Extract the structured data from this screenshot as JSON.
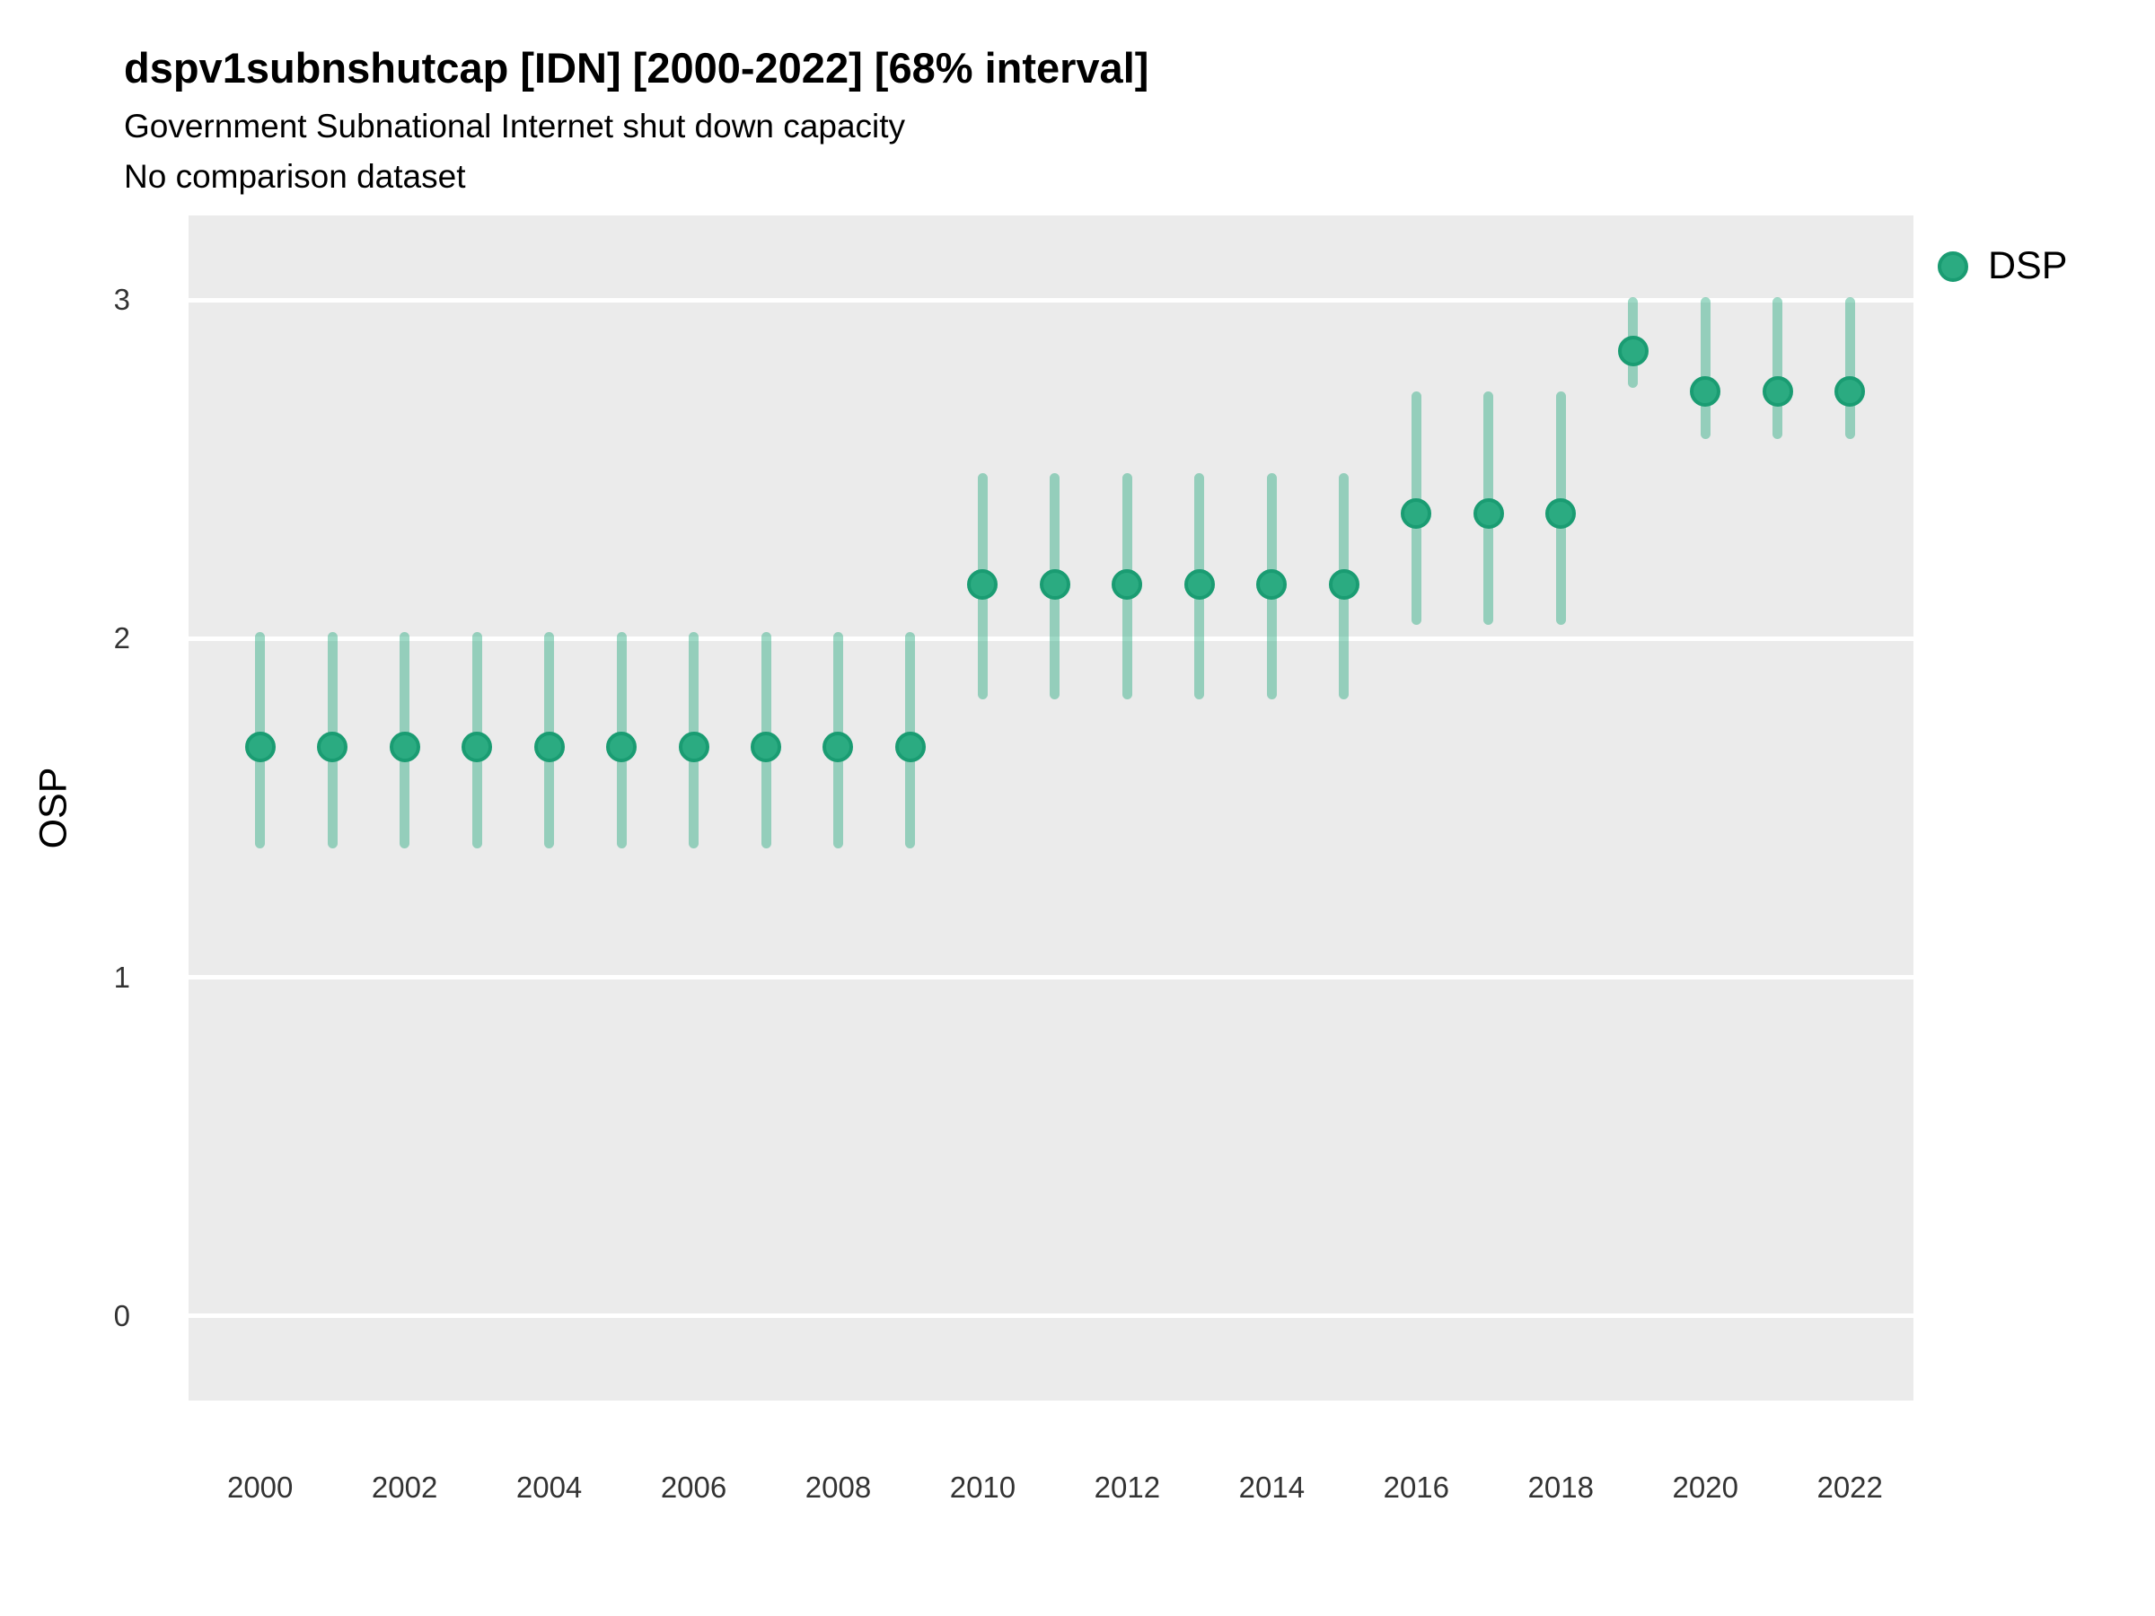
{
  "header": {
    "title": "dspv1subnshutcap [IDN] [2000-2022] [68% interval]",
    "subtitle": "Government Subnational Internet shut down capacity",
    "note": "No comparison dataset"
  },
  "legend": {
    "label": "DSP"
  },
  "colors": {
    "point_fill": "#2bab81",
    "point_stroke": "#1a9c72",
    "interval": "rgba(43, 170, 128, 0.45)",
    "panel_background": "#ebebeb",
    "gridline": "#ffffff",
    "tick_text": "#333333"
  },
  "chart_data": {
    "type": "scatter",
    "mark": "pointrange",
    "title": "dspv1subnshutcap [IDN] [2000-2022] [68% interval]",
    "subtitle": "Government Subnational Internet shut down capacity",
    "note": "No comparison dataset",
    "xlabel": "",
    "ylabel": "OSP",
    "interval_level": "68%",
    "grid": "horizontal major gridlines only, white on gray panel",
    "legend_position": "top-right",
    "x": [
      2000,
      2001,
      2002,
      2003,
      2004,
      2005,
      2006,
      2007,
      2008,
      2009,
      2010,
      2011,
      2012,
      2013,
      2014,
      2015,
      2016,
      2017,
      2018,
      2019,
      2020,
      2021,
      2022
    ],
    "series": [
      {
        "name": "DSP",
        "estimates": [
          1.68,
          1.68,
          1.68,
          1.68,
          1.68,
          1.68,
          1.68,
          1.68,
          1.68,
          1.68,
          2.16,
          2.16,
          2.16,
          2.16,
          2.16,
          2.16,
          2.37,
          2.37,
          2.37,
          2.85,
          2.73,
          2.73,
          2.73
        ],
        "lower": [
          1.38,
          1.38,
          1.38,
          1.38,
          1.38,
          1.38,
          1.38,
          1.38,
          1.38,
          1.38,
          1.82,
          1.82,
          1.82,
          1.82,
          1.82,
          1.82,
          2.04,
          2.04,
          2.04,
          2.74,
          2.59,
          2.59,
          2.59
        ],
        "upper": [
          2.02,
          2.02,
          2.02,
          2.02,
          2.02,
          2.02,
          2.02,
          2.02,
          2.02,
          2.02,
          2.49,
          2.49,
          2.49,
          2.49,
          2.49,
          2.49,
          2.73,
          2.73,
          2.73,
          3.01,
          3.01,
          3.01,
          3.01
        ]
      }
    ],
    "x_ticks": [
      2000,
      2002,
      2004,
      2006,
      2008,
      2010,
      2012,
      2014,
      2016,
      2018,
      2020,
      2022
    ],
    "y_ticks": [
      0,
      1,
      2,
      3
    ],
    "x_range": [
      1999.01,
      2022.88
    ],
    "y_range": [
      -0.25,
      3.25
    ]
  }
}
